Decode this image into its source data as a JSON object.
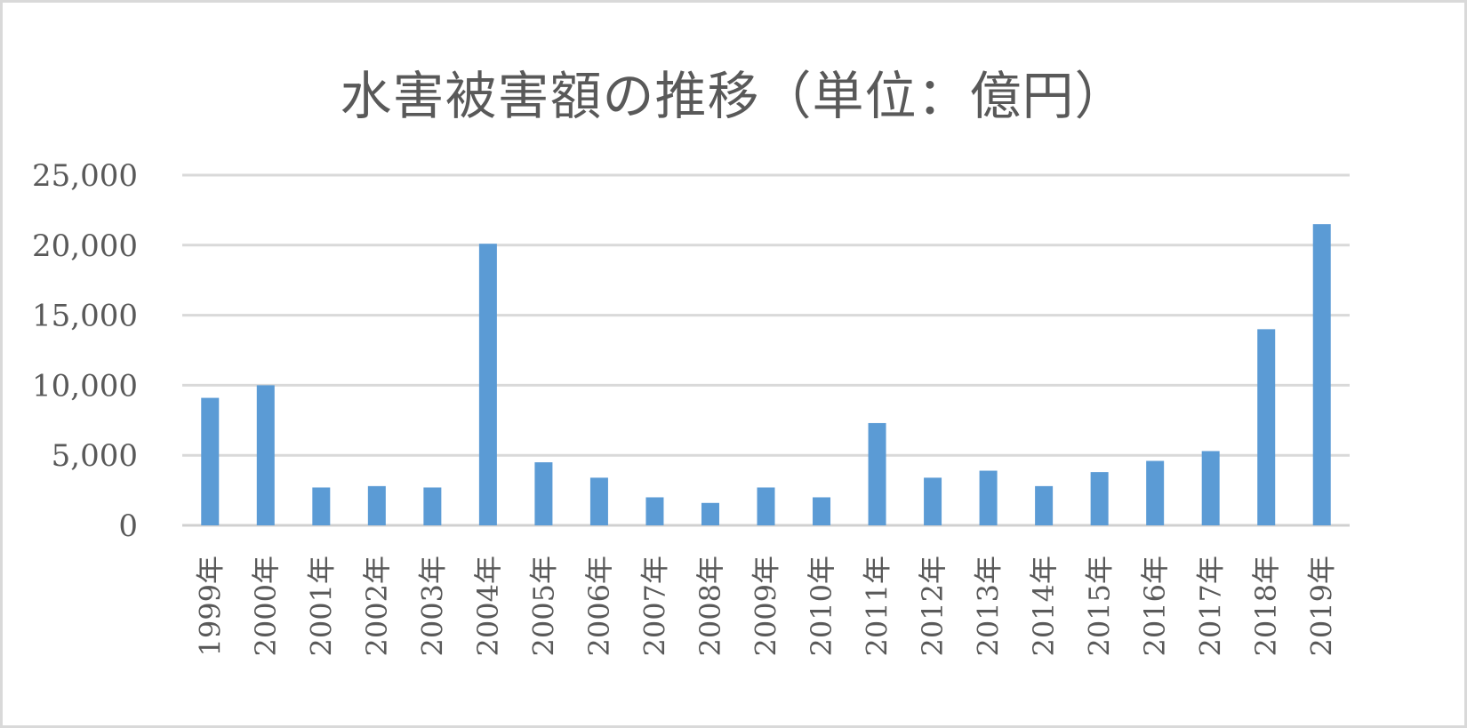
{
  "chart_data": {
    "type": "bar",
    "title": "水害被害額の推移（単位：億円）",
    "categories": [
      "1999年",
      "2000年",
      "2001年",
      "2002年",
      "2003年",
      "2004年",
      "2005年",
      "2006年",
      "2007年",
      "2008年",
      "2009年",
      "2010年",
      "2011年",
      "2012年",
      "2013年",
      "2014年",
      "2015年",
      "2016年",
      "2017年",
      "2018年",
      "2019年"
    ],
    "values": [
      9100,
      10000,
      2700,
      2800,
      2700,
      20100,
      4500,
      3400,
      2000,
      1600,
      2700,
      2000,
      7300,
      3400,
      3900,
      2800,
      3800,
      4600,
      5300,
      14000,
      21500
    ],
    "ylim": [
      0,
      25000
    ],
    "yticks": [
      0,
      5000,
      10000,
      15000,
      20000,
      25000
    ],
    "ytick_labels": [
      "0",
      "5,000",
      "10,000",
      "15,000",
      "20,000",
      "25,000"
    ],
    "xlabel": "",
    "ylabel": "",
    "grid": true,
    "legend": "none",
    "bar_color": "#5b9bd5",
    "grid_color": "#d9d9d9"
  }
}
